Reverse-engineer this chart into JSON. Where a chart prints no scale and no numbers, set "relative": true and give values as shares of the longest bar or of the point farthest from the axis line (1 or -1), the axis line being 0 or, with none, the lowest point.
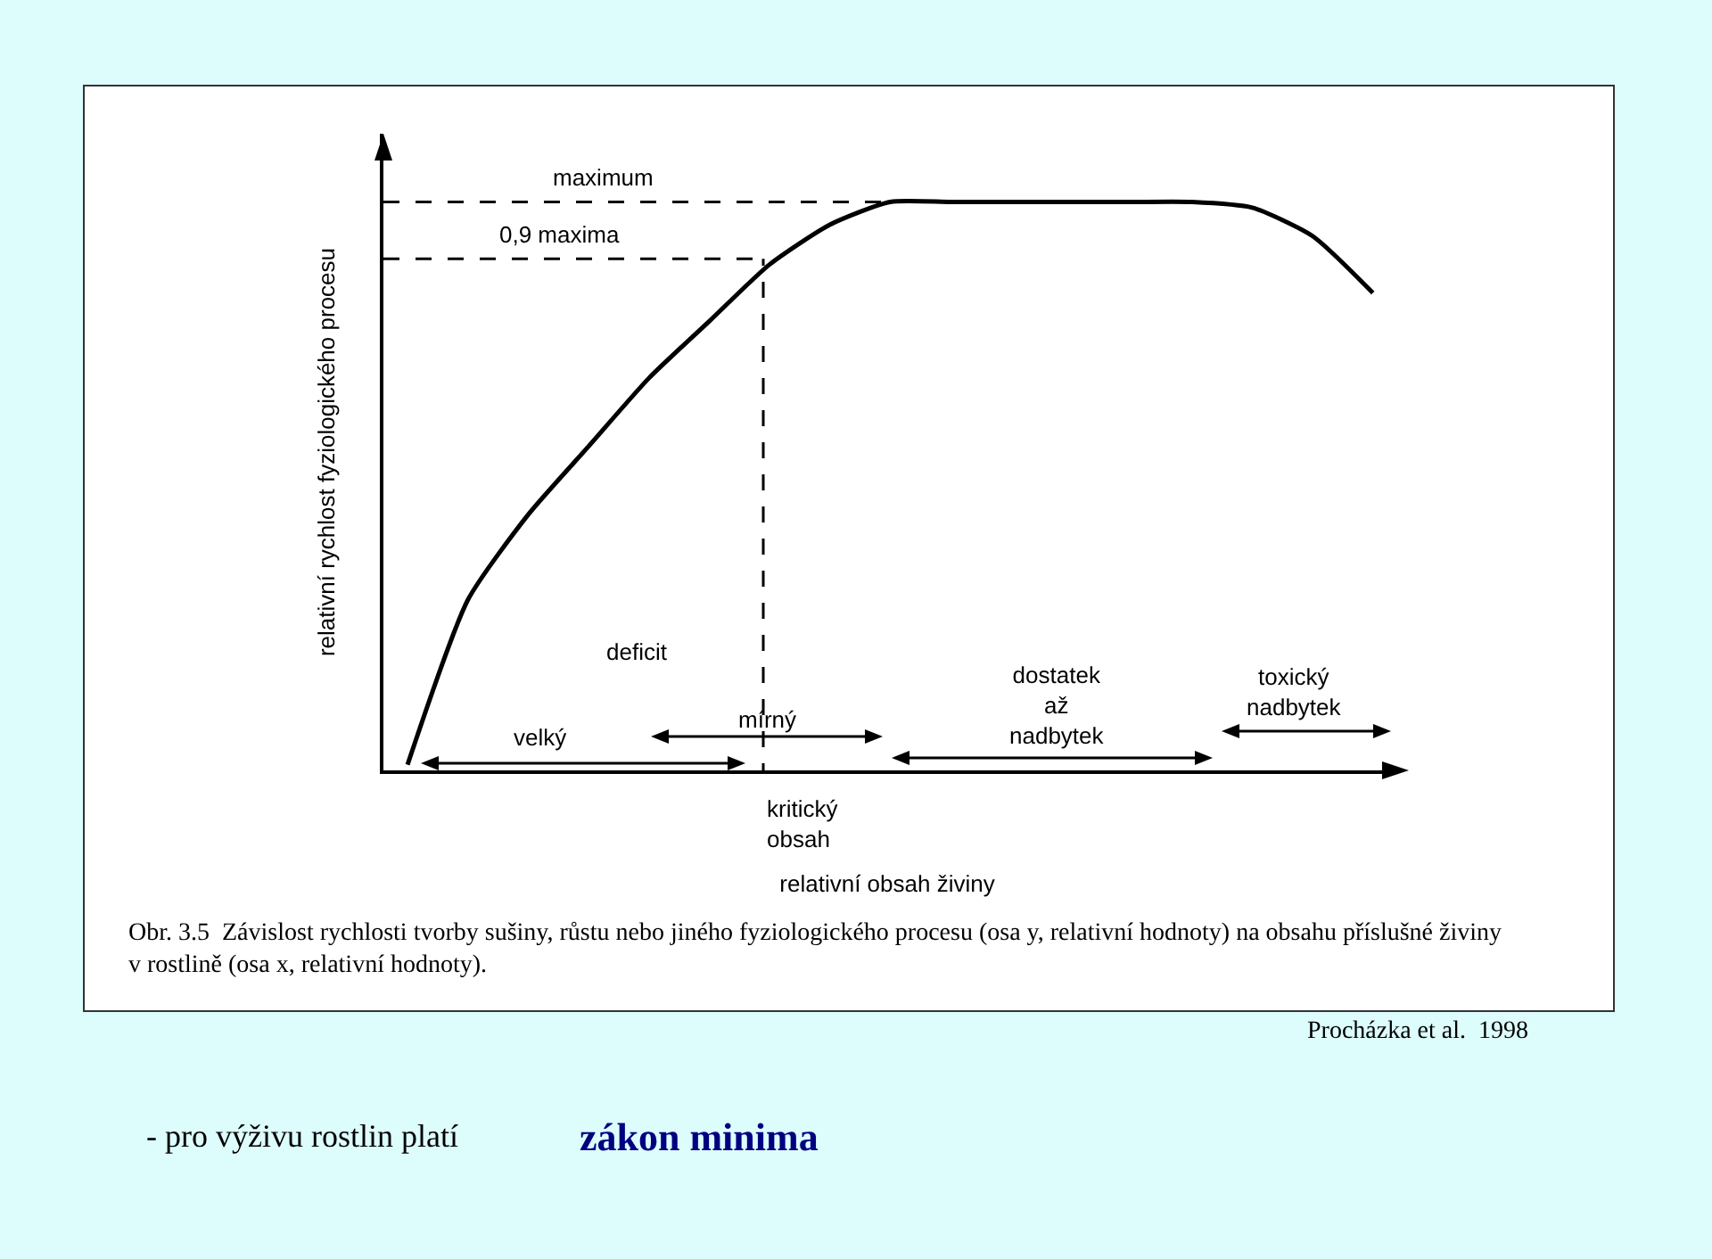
{
  "chart_data": {
    "type": "line",
    "relative": true,
    "xlabel": "relativní obsah živiny",
    "ylabel": "relativní rychlost fyziologického procesu",
    "categories": [
      null,
      null,
      null,
      null,
      null,
      null,
      null,
      null,
      null,
      null,
      null,
      null,
      null,
      null,
      null,
      null,
      null
    ],
    "series": [
      {
        "color": "#000000",
        "values": [
          0.01,
          0.3,
          0.45,
          0.57,
          0.69,
          0.79,
          0.89,
          0.96,
          1,
          1,
          1,
          1,
          1,
          1,
          0.99,
          0.94,
          0.84
        ]
      }
    ],
    "ref_lines": [
      {
        "axis": "y",
        "value": 1,
        "label": "maximum",
        "line_style": "dashed"
      },
      {
        "axis": "y",
        "value": 0.9,
        "label": "0,9 maxima",
        "line_style": "dashed"
      }
    ],
    "annotations": [
      "kritický\nobsah",
      "deficit",
      "velký",
      "mírný",
      "dostatek\naž\nnadbytek",
      "toxický\nnadbytek",
      "Obr. 3.5  Závislost rychlosti tvorby sušiny, růstu nebo jiného fyziologického procesu (osa y, relativní hodnoty) na obsahu příslušné živiny\nv rostlině (osa x, relativní hodnoty).",
      "Procházka et al.  1998",
      "- pro výživu rostlin platí",
      "zákon minima"
    ]
  }
}
